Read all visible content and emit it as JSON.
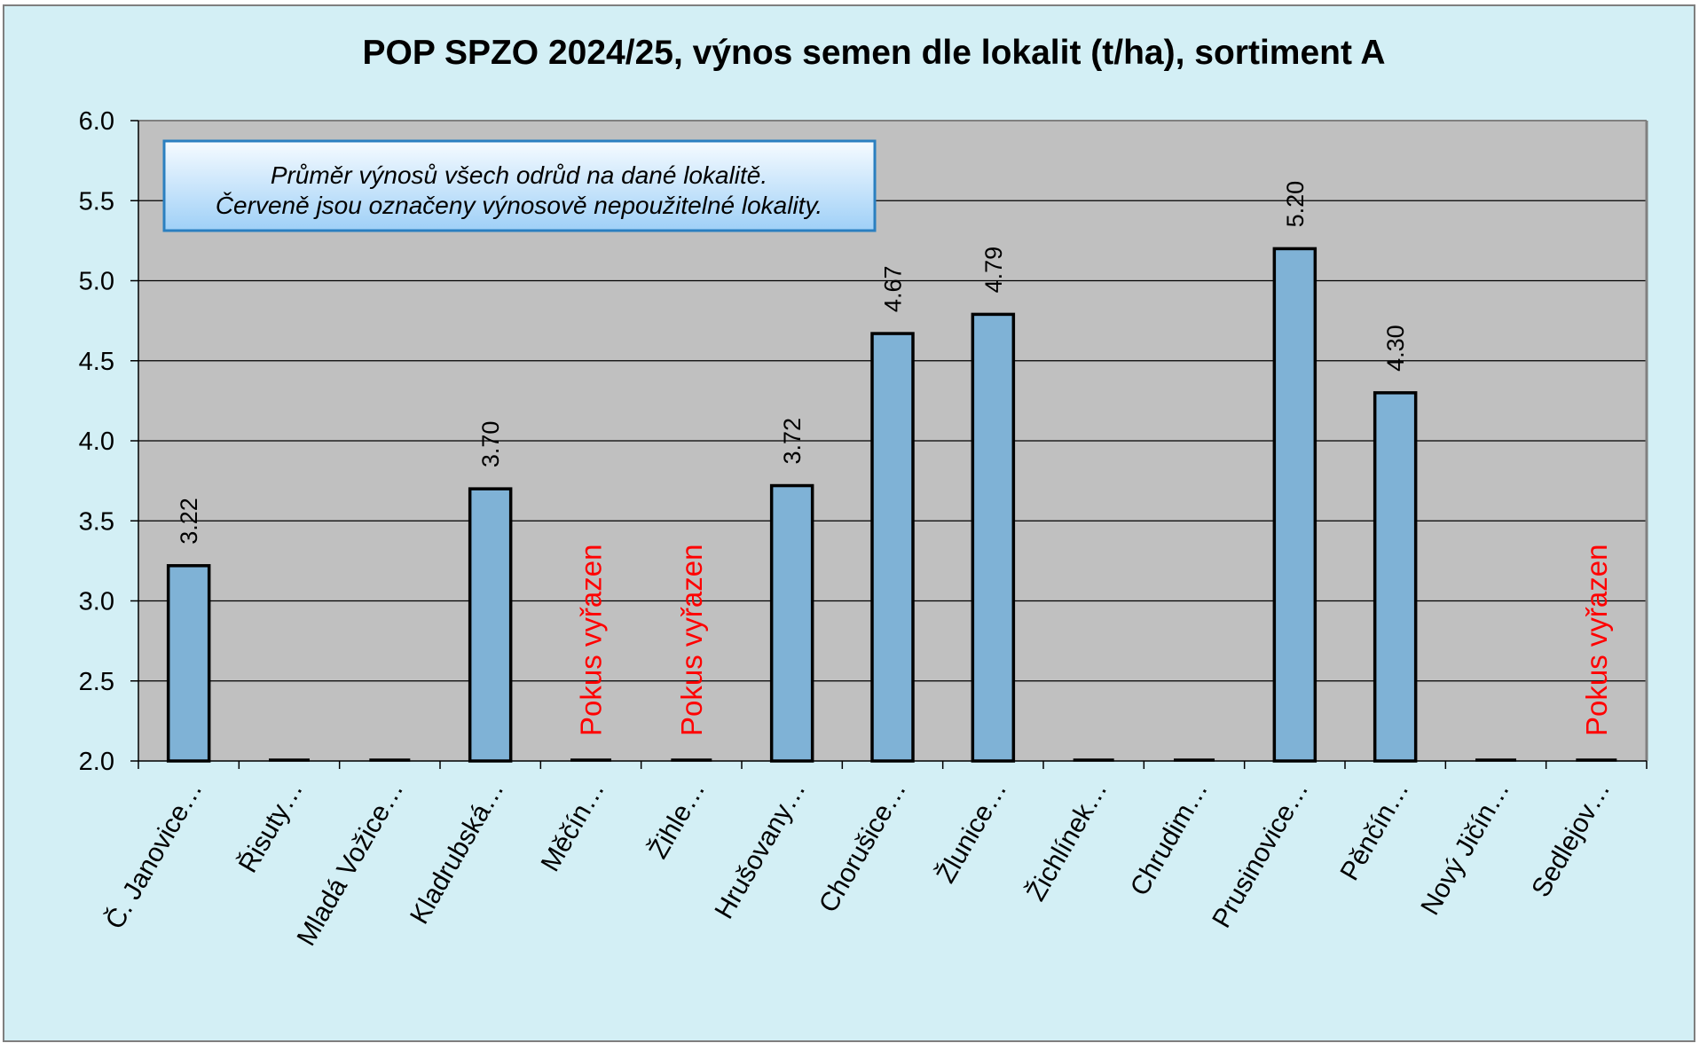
{
  "chart_data": {
    "type": "bar",
    "title": "POP SPZO 2024/25, výnos semen dle lokalit (t/ha), sortiment A",
    "xlabel": "",
    "ylabel": "",
    "ylim": [
      2.0,
      6.0
    ],
    "yticks": [
      "6.0",
      "5.5",
      "5.0",
      "4.5",
      "4.0",
      "3.5",
      "3.0",
      "2.5",
      "2.0"
    ],
    "grid": true,
    "legend": "none",
    "categories": [
      "Č. Janovice…",
      "Řisuty…",
      "Mladá Vožice…",
      "Kladrubská…",
      "Měčín…",
      "Žihle…",
      "Hrušovany…",
      "Chorušice…",
      "Žlunice…",
      "Žichlínek…",
      "Chrudim…",
      "Prusinovice…",
      "Pěnčín…",
      "Nový Jičín…",
      "Sedlejov…"
    ],
    "values": [
      3.22,
      null,
      null,
      3.7,
      null,
      null,
      3.72,
      4.67,
      4.79,
      null,
      null,
      5.2,
      4.3,
      null,
      null
    ],
    "data_labels": [
      "3.22",
      "",
      "",
      "3.70",
      "",
      "",
      "3.72",
      "4.67",
      "4.79",
      "",
      "",
      "5.20",
      "4.30",
      "",
      ""
    ],
    "excluded_labels": [
      "",
      "",
      "",
      "",
      "Pokus vyřazen",
      "Pokus vyřazen",
      "",
      "",
      "",
      "",
      "",
      "",
      "",
      "",
      "Pokus vyřazen"
    ],
    "annotation": {
      "line1": "Průměr výnosů všech odrůd na dané lokalitě.",
      "line2": "Červeně jsou označeny výnosově nepoužitelné lokality."
    },
    "colors": {
      "background": "#d3eff5",
      "plot_area": "#c0c0c0",
      "bar_fill": "#7fb2d6",
      "bar_stroke": "#000000",
      "excluded_text": "#ff0000",
      "note_top": "#f6fbff",
      "note_bottom": "#9fd0f7",
      "note_border": "#2a7fc0"
    }
  }
}
